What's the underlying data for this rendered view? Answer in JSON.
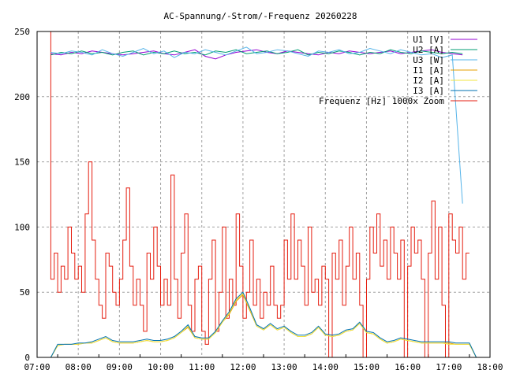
{
  "chart_data": {
    "type": "line",
    "title": "AC-Spannung/-Strom/-Frequenz 20260228",
    "xlabel": "",
    "ylabel": "",
    "xlim": [
      "07:00",
      "18:00"
    ],
    "ylim": [
      0,
      250
    ],
    "x_ticks": [
      "07:00",
      "08:00",
      "09:00",
      "10:00",
      "11:00",
      "12:00",
      "13:00",
      "14:00",
      "15:00",
      "16:00",
      "17:00",
      "18:00"
    ],
    "y_ticks": [
      "0",
      "50",
      "100",
      "150",
      "200",
      "250"
    ],
    "grid": true,
    "legend_position": "top-right",
    "series": [
      {
        "name": "U1 [V]",
        "color": "#9400d3",
        "start": "07:20",
        "step_min": 15,
        "values": [
          233,
          232,
          234,
          233,
          235,
          234,
          233,
          232,
          233,
          234,
          235,
          233,
          232,
          234,
          236,
          231,
          229,
          232,
          234,
          235,
          236,
          234,
          233,
          235,
          234,
          233,
          232,
          234,
          233,
          235,
          234,
          233,
          234,
          235,
          233,
          234,
          235,
          236,
          234,
          233,
          232
        ]
      },
      {
        "name": "U2 [A]",
        "color": "#009e73",
        "start": "07:20",
        "step_min": 15,
        "values": [
          232,
          234,
          233,
          235,
          233,
          234,
          232,
          234,
          235,
          232,
          234,
          233,
          235,
          233,
          234,
          232,
          235,
          234,
          236,
          233,
          234,
          235,
          233,
          234,
          236,
          232,
          234,
          233,
          235,
          234,
          232,
          234,
          233,
          236,
          234,
          233,
          235,
          234,
          233,
          234,
          233
        ]
      },
      {
        "name": "U3 [W]",
        "color": "#56b4e9",
        "start": "07:20",
        "step_min": 15,
        "values": [
          234,
          233,
          235,
          234,
          232,
          236,
          233,
          231,
          234,
          237,
          233,
          235,
          230,
          234,
          233,
          236,
          234,
          232,
          235,
          238,
          233,
          234,
          236,
          235,
          233,
          231,
          235,
          234,
          236,
          233,
          234,
          237,
          235,
          233,
          236,
          234,
          232,
          233,
          230,
          232,
          118
        ]
      },
      {
        "name": "I1 [A]",
        "color": "#e69f00",
        "start": "07:20",
        "step_min": 10,
        "values": [
          0,
          9,
          10,
          10,
          10,
          11,
          11,
          13,
          15,
          12,
          11,
          11,
          11,
          12,
          13,
          12,
          12,
          13,
          15,
          19,
          23,
          15,
          14,
          14,
          19,
          27,
          33,
          43,
          48,
          36,
          24,
          21,
          25,
          21,
          23,
          19,
          16,
          16,
          18,
          23,
          17,
          16,
          17,
          20,
          21,
          26,
          19,
          18,
          14,
          11,
          12,
          14,
          13,
          12,
          11,
          11,
          11,
          11,
          11,
          10,
          10,
          10,
          0
        ]
      },
      {
        "name": "I2 [A]",
        "color": "#f0e442",
        "start": "07:20",
        "step_min": 10,
        "values": [
          0,
          9,
          10,
          10,
          10,
          11,
          11,
          13,
          15,
          12,
          11,
          11,
          11,
          12,
          13,
          12,
          12,
          13,
          15,
          19,
          24,
          15,
          14,
          14,
          19,
          27,
          34,
          44,
          49,
          37,
          24,
          21,
          25,
          21,
          23,
          19,
          16,
          16,
          18,
          23,
          17,
          16,
          17,
          20,
          21,
          26,
          19,
          18,
          14,
          11,
          12,
          14,
          13,
          12,
          11,
          11,
          11,
          11,
          10,
          10,
          10,
          10,
          0
        ]
      },
      {
        "name": "I3 [A]",
        "color": "#0072b2",
        "start": "07:20",
        "step_min": 10,
        "values": [
          0,
          10,
          10,
          10,
          11,
          11,
          12,
          14,
          16,
          13,
          12,
          12,
          12,
          13,
          14,
          13,
          13,
          14,
          16,
          20,
          25,
          16,
          15,
          15,
          20,
          28,
          35,
          45,
          50,
          38,
          25,
          22,
          26,
          22,
          24,
          20,
          17,
          17,
          19,
          24,
          18,
          17,
          18,
          21,
          22,
          27,
          20,
          19,
          15,
          12,
          13,
          15,
          14,
          13,
          12,
          12,
          12,
          12,
          12,
          11,
          11,
          11,
          0
        ]
      },
      {
        "name": "Frequenz [Hz] 1000x Zoom",
        "color": "#e51e10",
        "start": "07:20",
        "step_min": 5,
        "values": [
          250,
          60,
          80,
          50,
          70,
          60,
          100,
          80,
          60,
          70,
          50,
          110,
          150,
          90,
          60,
          40,
          30,
          80,
          70,
          50,
          40,
          60,
          90,
          130,
          70,
          40,
          60,
          40,
          20,
          80,
          60,
          100,
          70,
          40,
          60,
          40,
          140,
          60,
          30,
          80,
          110,
          40,
          20,
          60,
          70,
          20,
          10,
          60,
          90,
          20,
          50,
          100,
          30,
          60,
          40,
          110,
          70,
          30,
          50,
          90,
          40,
          60,
          30,
          50,
          40,
          70,
          40,
          30,
          40,
          90,
          60,
          110,
          60,
          90,
          70,
          40,
          100,
          50,
          60,
          40,
          70,
          60,
          0,
          80,
          60,
          90,
          40,
          70,
          100,
          60,
          80,
          40,
          0,
          60,
          100,
          80,
          110,
          70,
          90,
          60,
          100,
          80,
          60,
          90,
          0,
          70,
          100,
          80,
          90,
          60,
          0,
          80,
          120,
          60,
          100,
          40,
          0,
          110,
          90,
          80,
          100,
          60,
          80
        ]
      }
    ]
  }
}
